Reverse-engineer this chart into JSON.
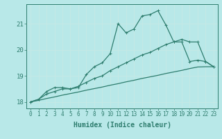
{
  "xlabel": "Humidex (Indice chaleur)",
  "background_color": "#b8e8e8",
  "grid_color": "#d0f0f0",
  "line_color": "#2e7d6e",
  "x_values": [
    0,
    1,
    2,
    3,
    4,
    5,
    6,
    7,
    8,
    9,
    10,
    11,
    12,
    13,
    14,
    15,
    16,
    17,
    18,
    19,
    20,
    21,
    22,
    23
  ],
  "line1": [
    18.0,
    18.1,
    18.4,
    18.55,
    18.55,
    18.5,
    18.55,
    19.05,
    19.35,
    19.5,
    19.85,
    21.0,
    20.65,
    20.8,
    21.3,
    21.35,
    21.5,
    20.95,
    20.3,
    20.3,
    19.55,
    19.6,
    19.55,
    19.35
  ],
  "line2": [
    18.0,
    18.1,
    18.3,
    18.4,
    18.5,
    18.5,
    18.6,
    18.75,
    18.9,
    19.0,
    19.2,
    19.35,
    19.5,
    19.65,
    19.8,
    19.9,
    20.05,
    20.2,
    20.3,
    20.4,
    20.3,
    20.3,
    19.55,
    19.35
  ],
  "line3": [
    18.0,
    18.06,
    18.13,
    18.19,
    18.26,
    18.32,
    18.38,
    18.45,
    18.51,
    18.57,
    18.64,
    18.7,
    18.77,
    18.83,
    18.9,
    18.96,
    19.02,
    19.09,
    19.15,
    19.21,
    19.28,
    19.34,
    19.35,
    19.35
  ],
  "ylim": [
    17.75,
    21.75
  ],
  "xlim": [
    -0.5,
    23.5
  ],
  "yticks": [
    18,
    19,
    20,
    21
  ],
  "xticks": [
    0,
    1,
    2,
    3,
    4,
    5,
    6,
    7,
    8,
    9,
    10,
    11,
    12,
    13,
    14,
    15,
    16,
    17,
    18,
    19,
    20,
    21,
    22,
    23
  ],
  "tick_fontsize": 5.5,
  "ylabel_fontsize": 6.5,
  "xlabel_fontsize": 7.0
}
